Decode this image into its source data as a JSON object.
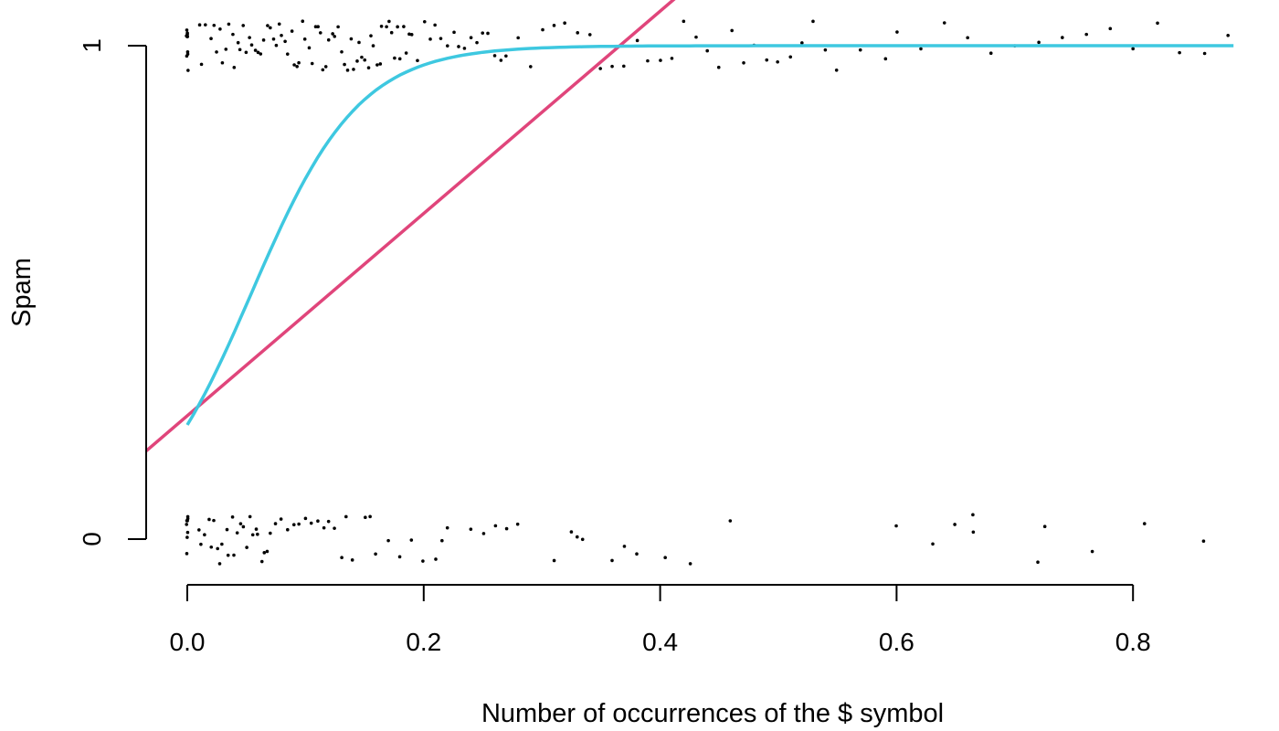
{
  "chart_data": {
    "type": "scatter",
    "title": "",
    "xlabel": "Number of occurrences of the $ symbol",
    "ylabel": "Spam",
    "xlim": [
      -0.035,
      0.885
    ],
    "ylim": [
      -0.06,
      1.06
    ],
    "x_ticks": [
      0.0,
      0.2,
      0.4,
      0.6,
      0.8
    ],
    "x_tick_labels": [
      "0.0",
      "0.2",
      "0.4",
      "0.6",
      "0.8"
    ],
    "y_ticks": [
      0,
      1
    ],
    "y_tick_labels": [
      "0",
      "1"
    ],
    "grid": false,
    "legend": "none",
    "points": {
      "jitter": "vertical",
      "spam_1": {
        "y": 1,
        "x": [
          0.0,
          0.0,
          0.0,
          0.0,
          0.0,
          0.0,
          0.0,
          0.0,
          0.0,
          0.0,
          0.01,
          0.012,
          0.015,
          0.02,
          0.022,
          0.025,
          0.028,
          0.03,
          0.033,
          0.035,
          0.038,
          0.04,
          0.043,
          0.045,
          0.048,
          0.05,
          0.052,
          0.055,
          0.058,
          0.06,
          0.062,
          0.065,
          0.068,
          0.07,
          0.073,
          0.075,
          0.078,
          0.08,
          0.083,
          0.085,
          0.088,
          0.09,
          0.093,
          0.095,
          0.098,
          0.1,
          0.103,
          0.105,
          0.108,
          0.11,
          0.113,
          0.115,
          0.118,
          0.12,
          0.123,
          0.125,
          0.128,
          0.13,
          0.133,
          0.135,
          0.138,
          0.14,
          0.143,
          0.145,
          0.148,
          0.15,
          0.153,
          0.155,
          0.158,
          0.16,
          0.163,
          0.165,
          0.168,
          0.17,
          0.173,
          0.175,
          0.178,
          0.18,
          0.183,
          0.185,
          0.188,
          0.19,
          0.195,
          0.2,
          0.205,
          0.21,
          0.215,
          0.22,
          0.225,
          0.23,
          0.235,
          0.24,
          0.245,
          0.25,
          0.255,
          0.26,
          0.265,
          0.27,
          0.28,
          0.29,
          0.3,
          0.31,
          0.32,
          0.33,
          0.34,
          0.35,
          0.36,
          0.37,
          0.38,
          0.39,
          0.4,
          0.41,
          0.42,
          0.43,
          0.44,
          0.45,
          0.46,
          0.47,
          0.48,
          0.49,
          0.5,
          0.51,
          0.52,
          0.53,
          0.54,
          0.55,
          0.57,
          0.59,
          0.6,
          0.62,
          0.64,
          0.66,
          0.68,
          0.7,
          0.72,
          0.74,
          0.76,
          0.78,
          0.8,
          0.82,
          0.84,
          0.86,
          0.88
        ]
      },
      "spam_0": {
        "y": 0,
        "x": [
          0.0,
          0.0,
          0.0,
          0.0,
          0.0,
          0.0,
          0.0,
          0.0,
          0.01,
          0.012,
          0.015,
          0.018,
          0.02,
          0.023,
          0.025,
          0.028,
          0.03,
          0.033,
          0.035,
          0.038,
          0.04,
          0.043,
          0.045,
          0.048,
          0.05,
          0.053,
          0.055,
          0.058,
          0.06,
          0.063,
          0.065,
          0.068,
          0.07,
          0.075,
          0.08,
          0.085,
          0.09,
          0.095,
          0.1,
          0.105,
          0.11,
          0.115,
          0.12,
          0.125,
          0.13,
          0.135,
          0.14,
          0.15,
          0.155,
          0.16,
          0.17,
          0.18,
          0.19,
          0.2,
          0.21,
          0.215,
          0.22,
          0.24,
          0.25,
          0.26,
          0.27,
          0.28,
          0.31,
          0.325,
          0.33,
          0.335,
          0.36,
          0.37,
          0.38,
          0.405,
          0.425,
          0.46,
          0.6,
          0.63,
          0.65,
          0.665,
          0.665,
          0.72,
          0.725,
          0.765,
          0.81,
          0.86
        ]
      }
    },
    "series": [
      {
        "type": "line",
        "model": "linear",
        "intercept": 0.25,
        "slope": 2.05,
        "color": "#e0457b"
      },
      {
        "type": "line",
        "model": "logistic",
        "intercept": -1.2,
        "slope": 22,
        "color": "#3ec8e0"
      }
    ]
  }
}
